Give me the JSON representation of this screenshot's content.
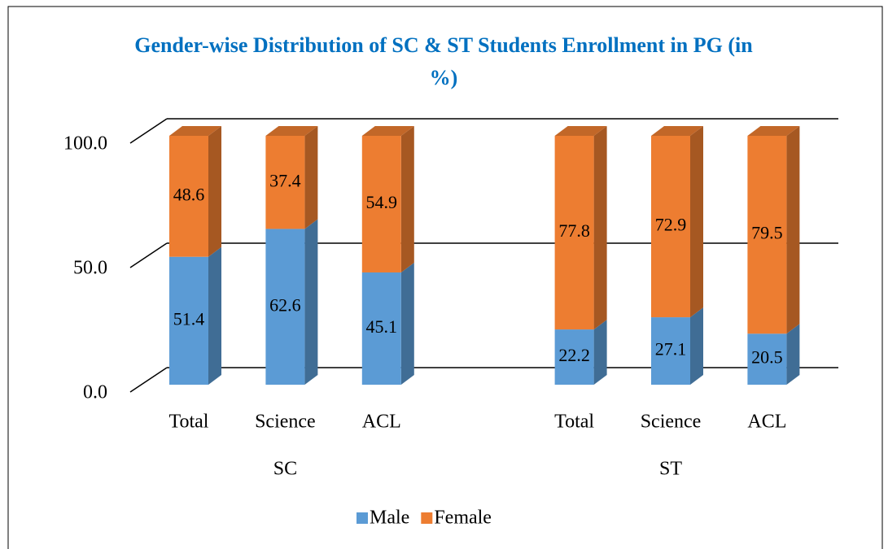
{
  "chart_data": {
    "type": "stacked-bar-3d",
    "title": "Gender-wise Distribution of SC & ST Students Enrollment in PG (in %)",
    "categories": [
      "Total",
      "Science",
      "ACL",
      "Total",
      "Science",
      "ACL"
    ],
    "groups": [
      "SC",
      "ST"
    ],
    "series": [
      {
        "name": "Male",
        "color": "#5b9bd5",
        "values": [
          51.4,
          62.6,
          45.1,
          22.2,
          27.1,
          20.5
        ]
      },
      {
        "name": "Female",
        "color": "#ed7d31",
        "values": [
          48.6,
          37.4,
          54.9,
          77.8,
          72.9,
          79.5
        ]
      }
    ],
    "ylim": [
      0,
      100
    ],
    "yticks": [
      {
        "value": 0,
        "label": "0.0"
      },
      {
        "value": 50,
        "label": "50.0"
      },
      {
        "value": 100,
        "label": "100.0"
      }
    ],
    "grid": true,
    "legend": "bottom"
  }
}
